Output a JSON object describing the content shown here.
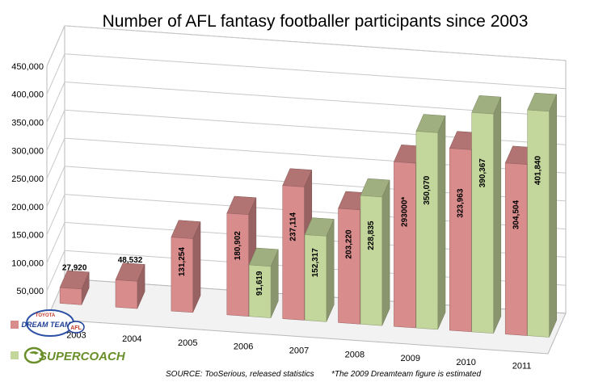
{
  "chart_data": {
    "type": "bar",
    "title": "Number of AFL fantasy footballer participants since 2003",
    "categories": [
      "2003",
      "2004",
      "2005",
      "2006",
      "2007",
      "2008",
      "2009",
      "2010",
      "2011"
    ],
    "series": [
      {
        "name": "Dream Team",
        "color": "#d98c8c",
        "values": [
          27920,
          48532,
          131254,
          180902,
          237114,
          203220,
          293000,
          323963,
          304504
        ],
        "labels": [
          "27,920",
          "48,532",
          "131,254",
          "180,902",
          "237,114",
          "203,220",
          "293000*",
          "323,963",
          "304,504"
        ]
      },
      {
        "name": "SuperCoach",
        "color": "#c3d69b",
        "values": [
          null,
          null,
          null,
          91619,
          152317,
          228835,
          350070,
          390367,
          401840
        ],
        "labels": [
          null,
          null,
          null,
          "91,619",
          "152,317",
          "228,835",
          "350,070",
          "390,367",
          "401,840"
        ]
      }
    ],
    "ylim": [
      0,
      450000
    ],
    "yticks": [
      "0",
      "50,000",
      "100,000",
      "150,000",
      "200,000",
      "250,000",
      "300,000",
      "350,000",
      "400,000",
      "450,000"
    ],
    "grid": true,
    "legend_position": "bottom-left",
    "legend": {
      "dreamteam_logo": {
        "top": "TOYOTA",
        "main": "DREAM TEAM",
        "afl": "AFL"
      },
      "supercoach_logo": {
        "text": "SUPERCOACH"
      }
    },
    "footnotes": {
      "source": "SOURCE: TooSerious, released statistics",
      "note": "*The 2009 Dreamteam figure is estimated"
    }
  }
}
